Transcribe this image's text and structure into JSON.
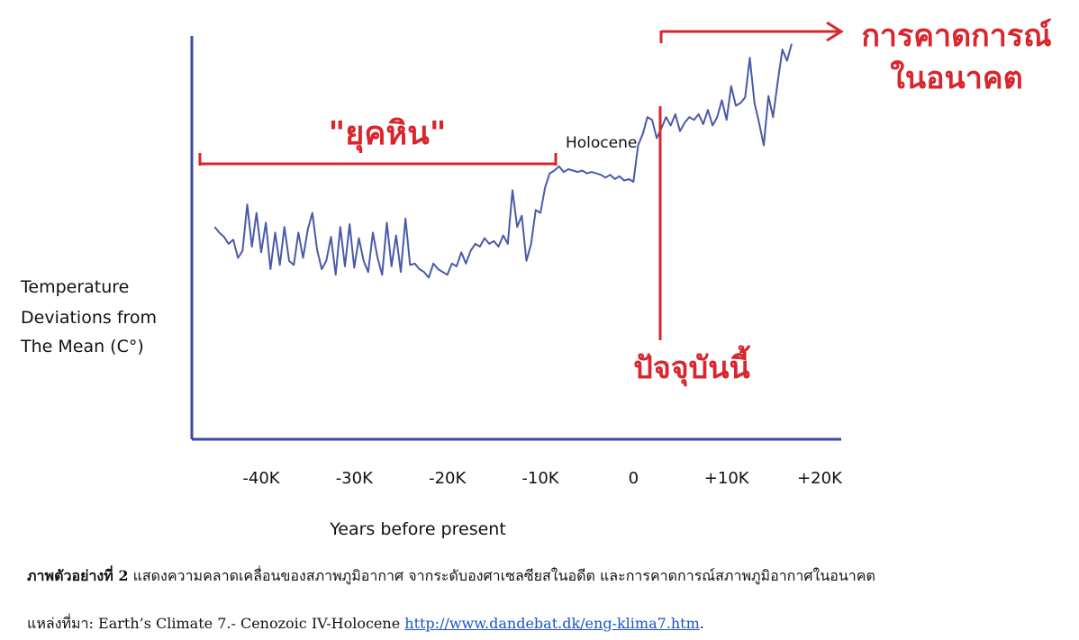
{
  "chart_data": {
    "type": "line",
    "xlabel": "Years before present",
    "ylabel_lines": [
      "Temperature",
      "Deviations from",
      "The Mean (C°)"
    ],
    "x_ticks": [
      {
        "value": -40000,
        "label": "-40K"
      },
      {
        "value": -30000,
        "label": "-30K"
      },
      {
        "value": -20000,
        "label": "-20K"
      },
      {
        "value": -10000,
        "label": "-10K"
      },
      {
        "value": 0,
        "label": "0"
      },
      {
        "value": 10000,
        "label": "+10K"
      },
      {
        "value": 20000,
        "label": "+20K"
      }
    ],
    "xlim": [
      -46000,
      20000
    ],
    "series": [
      {
        "color": "#4a5aa8",
        "x": [
          -45000,
          -44500,
          -44000,
          -43500,
          -43000,
          -42500,
          -42000,
          -41500,
          -41000,
          -40500,
          -40000,
          -39500,
          -39000,
          -38500,
          -38000,
          -37500,
          -37000,
          -36500,
          -36000,
          -35500,
          -35000,
          -34500,
          -34000,
          -33500,
          -33000,
          -32500,
          -32000,
          -31500,
          -31000,
          -30500,
          -30000,
          -29500,
          -29000,
          -28500,
          -28000,
          -27500,
          -27000,
          -26500,
          -26000,
          -25500,
          -25000,
          -24500,
          -24000,
          -23500,
          -23000,
          -22500,
          -22000,
          -21500,
          -21000,
          -20500,
          -20000,
          -19500,
          -19000,
          -18500,
          -18000,
          -17500,
          -17000,
          -16500,
          -16000,
          -15500,
          -15000,
          -14500,
          -14000,
          -13500,
          -13000,
          -12500,
          -12000,
          -11500,
          -11000,
          -10500,
          -10000,
          -9500,
          -9000,
          -8500,
          -8000,
          -7500,
          -7000,
          -6500,
          -6000,
          -5500,
          -5000,
          -4500,
          -4000,
          -3500,
          -3000,
          -2500,
          -2000,
          -1500,
          -1000,
          -500,
          0,
          500,
          1000,
          1500,
          2000,
          2500,
          3000,
          3500,
          4000,
          4500,
          5000,
          5500,
          6000,
          6500,
          7000,
          7500,
          8000,
          8500,
          9000,
          9500,
          10000,
          10500,
          11000,
          11500,
          12000,
          12500,
          13000,
          13500,
          14000,
          14500,
          15000,
          15500,
          16000,
          16500,
          17000
        ],
        "values": [
          0.52,
          0.48,
          0.45,
          0.4,
          0.43,
          0.3,
          0.35,
          0.68,
          0.38,
          0.62,
          0.34,
          0.55,
          0.22,
          0.48,
          0.25,
          0.52,
          0.28,
          0.25,
          0.48,
          0.3,
          0.5,
          0.62,
          0.36,
          0.22,
          0.28,
          0.45,
          0.18,
          0.52,
          0.24,
          0.54,
          0.23,
          0.44,
          0.28,
          0.2,
          0.48,
          0.3,
          0.18,
          0.55,
          0.24,
          0.46,
          0.2,
          0.58,
          0.25,
          0.26,
          0.22,
          0.2,
          0.16,
          0.26,
          0.22,
          0.2,
          0.18,
          0.26,
          0.24,
          0.34,
          0.26,
          0.35,
          0.4,
          0.38,
          0.44,
          0.4,
          0.42,
          0.38,
          0.46,
          0.4,
          0.78,
          0.52,
          0.6,
          0.28,
          0.4,
          0.64,
          0.62,
          0.8,
          0.9,
          0.92,
          0.95,
          0.91,
          0.93,
          0.92,
          0.91,
          0.92,
          0.9,
          0.91,
          0.9,
          0.89,
          0.87,
          0.89,
          0.86,
          0.88,
          0.85,
          0.86,
          0.84,
          1.1,
          1.18,
          1.3,
          1.28,
          1.15,
          1.22,
          1.3,
          1.24,
          1.32,
          1.2,
          1.26,
          1.3,
          1.28,
          1.32,
          1.25,
          1.35,
          1.24,
          1.3,
          1.42,
          1.28,
          1.52,
          1.38,
          1.4,
          1.44,
          1.72,
          1.4,
          1.26,
          1.1,
          1.45,
          1.3,
          1.55,
          1.78,
          1.7,
          1.82
        ]
      }
    ],
    "grid": false
  },
  "annotations": {
    "ice_age_label": "\"ยุคหิน\"",
    "holocene_label": "Holocene",
    "present_label": "ปัจจุบันนี้",
    "forecast_line1": "การคาดการณ์",
    "forecast_line2": "ในอนาคต"
  },
  "caption": {
    "bold": "ภาพตัวอย่างที่ 2",
    "text": " แสดงความคลาดเคลื่อนของสภาพภูมิอากาศ จากระดับองศาเซลซียสในอดีต และการคาดการณ์สภาพภูมิอากาศในอนาคต"
  },
  "source": {
    "prefix": "แหล่งที่มา: Earth’s Climate 7.- Cenozoic IV-Holocene ",
    "link": "http://www.dandebat.dk/eng-klima7.htm",
    "suffix": "."
  },
  "colors": {
    "axis": "#3a4aa8",
    "line": "#4a5aa8",
    "annotation": "#d8262d"
  }
}
